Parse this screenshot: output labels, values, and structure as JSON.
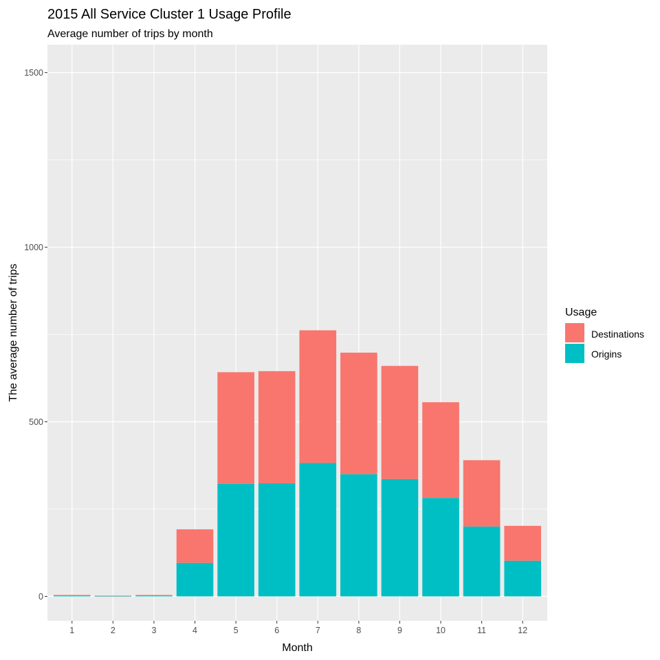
{
  "chart_data": {
    "type": "bar",
    "stacked": true,
    "title": "2015 All Service Cluster 1 Usage Profile",
    "subtitle": "Average number of trips by month",
    "xlabel": "Month",
    "ylabel": "The average number of trips",
    "categories": [
      "1",
      "2",
      "3",
      "4",
      "5",
      "6",
      "7",
      "8",
      "9",
      "10",
      "11",
      "12"
    ],
    "yticks": [
      "0",
      "500",
      "1000",
      "1500"
    ],
    "ytick_values": [
      0,
      500,
      1000,
      1500
    ],
    "ylim": [
      -70,
      1580
    ],
    "grid": true,
    "legend": {
      "title": "Usage",
      "position": "right",
      "entries": [
        "Destinations",
        "Origins"
      ]
    },
    "series": [
      {
        "name": "Origins",
        "color": "#00BFC4",
        "values": [
          2,
          1,
          2,
          96,
          322,
          324,
          382,
          350,
          336,
          282,
          200,
          102
        ]
      },
      {
        "name": "Destinations",
        "color": "#F8766D",
        "values": [
          2,
          1,
          2,
          96,
          320,
          321,
          380,
          348,
          324,
          274,
          190,
          100
        ]
      }
    ],
    "panel_background": "#EBEBEB",
    "grid_color": "#FFFFFF"
  }
}
